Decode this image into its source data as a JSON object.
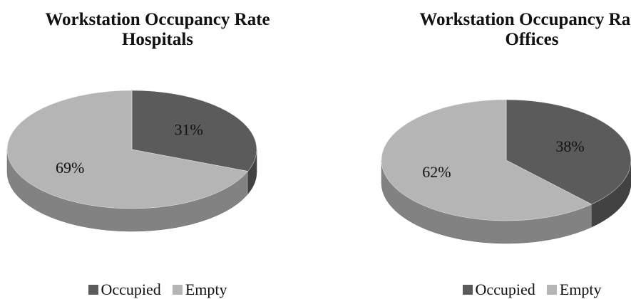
{
  "chart_data": [
    {
      "type": "pie",
      "title": "Workstation Occupancy Rate Hospitals",
      "categories": [
        "Occupied",
        "Empty"
      ],
      "values": [
        31,
        69
      ],
      "value_labels": [
        "31%",
        "69%"
      ],
      "colors": [
        "#5b5b5b",
        "#b5b5b5"
      ]
    },
    {
      "type": "pie",
      "title": "Workstation Occupancy Rate Offices",
      "categories": [
        "Occupied",
        "Empty"
      ],
      "values": [
        38,
        62
      ],
      "value_labels": [
        "38%",
        "62%"
      ],
      "colors": [
        "#5b5b5b",
        "#b5b5b5"
      ]
    }
  ]
}
